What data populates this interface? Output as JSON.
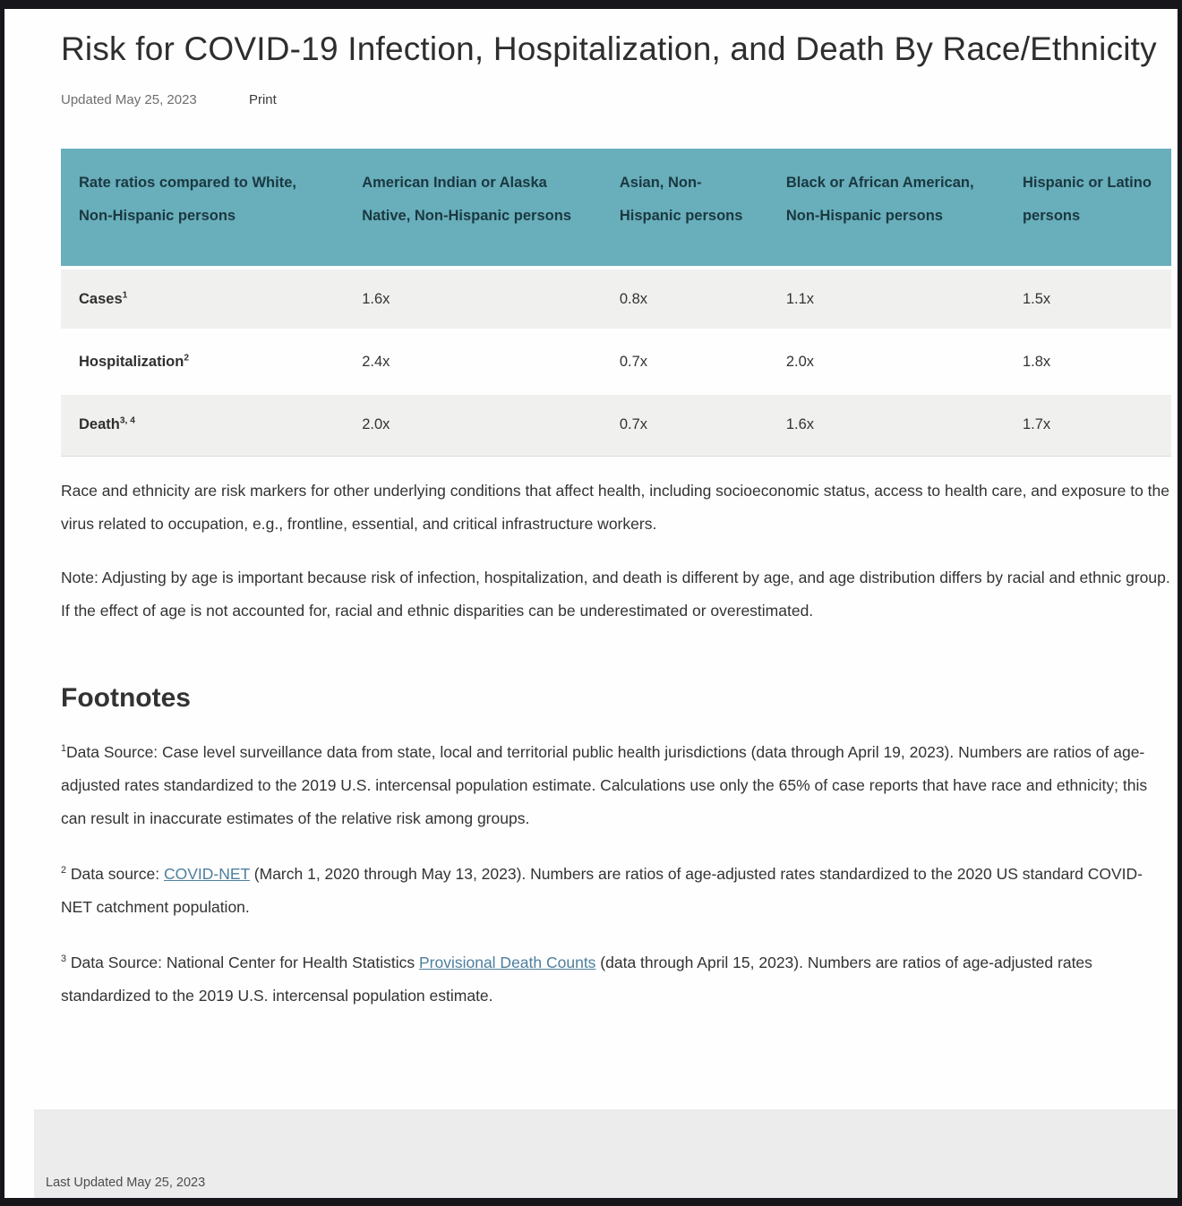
{
  "header": {
    "title": "Risk for COVID-19 Infection, Hospitalization, and Death By Race/Ethnicity",
    "updated": "Updated May 25, 2023",
    "print_label": "Print"
  },
  "table": {
    "columns": [
      "Rate ratios compared to White, Non-Hispanic persons",
      "American Indian or Alaska Native, Non-Hispanic persons",
      "Asian, Non-Hispanic persons",
      "Black or African American, Non-Hispanic persons",
      "Hispanic or Latino persons"
    ],
    "rows": [
      {
        "label": "Cases",
        "sup": "1",
        "values": [
          "1.6x",
          "0.8x",
          "1.1x",
          "1.5x"
        ]
      },
      {
        "label": "Hospitalization",
        "sup": "2",
        "values": [
          "2.4x",
          "0.7x",
          "2.0x",
          "1.8x"
        ]
      },
      {
        "label": "Death",
        "sup": "3, 4",
        "values": [
          "2.0x",
          "0.7x",
          "1.6x",
          "1.7x"
        ]
      }
    ]
  },
  "chart_data": {
    "type": "table",
    "title": "Rate ratios compared to White, Non-Hispanic persons",
    "categories": [
      "American Indian or Alaska Native, Non-Hispanic persons",
      "Asian, Non-Hispanic persons",
      "Black or African American, Non-Hispanic persons",
      "Hispanic or Latino persons"
    ],
    "series": [
      {
        "name": "Cases",
        "values": [
          1.6,
          0.8,
          1.1,
          1.5
        ]
      },
      {
        "name": "Hospitalization",
        "values": [
          2.4,
          0.7,
          2.0,
          1.8
        ]
      },
      {
        "name": "Death",
        "values": [
          2.0,
          0.7,
          1.6,
          1.7
        ]
      }
    ]
  },
  "paragraphs": [
    "Race and ethnicity are risk markers for other underlying conditions that affect health, including socioeconomic status, access to health care, and exposure to the virus related to occupation, e.g., frontline, essential, and critical infrastructure workers.",
    "Note: Adjusting by age is important because risk of infection, hospitalization, and death is different by age, and age distribution differs by racial and ethnic group. If the effect of age is not accounted for, racial and ethnic disparities can be underestimated or overestimated."
  ],
  "footnotes": {
    "heading": "Footnotes",
    "items": [
      {
        "sup": "1",
        "prefix": "Data Source: Case level surveillance data from state, local and territorial public health jurisdictions (data through April 19, 2023). Numbers are ratios of age-adjusted rates standardized to the 2019 U.S. intercensal population estimate. Calculations use only the 65% of case reports that have race and ethnicity; this can result in inaccurate estimates of the relative risk among groups.",
        "link_text": "",
        "suffix": ""
      },
      {
        "sup": "2",
        "prefix": " Data source: ",
        "link_text": "COVID-NET",
        "suffix": " (March 1, 2020 through May 13, 2023). Numbers are ratios of age-adjusted rates standardized to the 2020 US standard COVID-NET catchment population."
      },
      {
        "sup": "3",
        "prefix": " Data Source: National Center for Health Statistics ",
        "link_text": "Provisional Death Counts",
        "suffix": " (data through April 15, 2023). Numbers are ratios of age-adjusted rates standardized to the 2019 U.S. intercensal population estimate."
      }
    ]
  },
  "footer": {
    "last_updated": "Last Updated May 25, 2023"
  },
  "colors": {
    "table_header_bg": "#68aebb",
    "table_header_text": "#1b3840",
    "row_alt_bg": "#f0f0ef",
    "link_color": "#4e7f9e",
    "footer_bg": "#ececec",
    "frame_color": "#16161b"
  }
}
